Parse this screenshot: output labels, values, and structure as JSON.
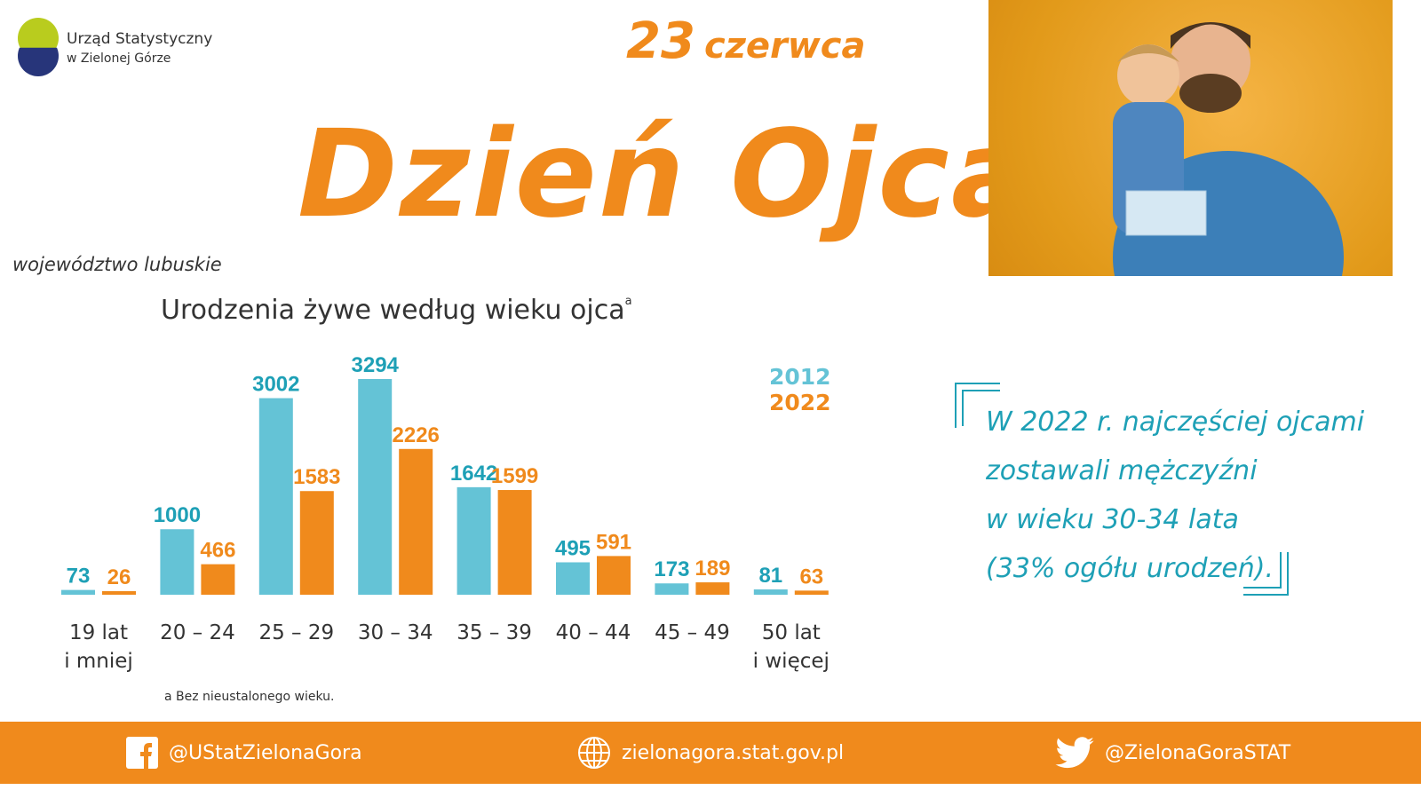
{
  "logo": {
    "line1": "Urząd Statystyczny",
    "line2": "w Zielonej Górze"
  },
  "header": {
    "day": "23",
    "month": "czerwca",
    "title": "Dzień Ojca",
    "region": "województwo lubuskie"
  },
  "colors": {
    "s2012": "#64c3d6",
    "s2012_label": "#1ea0b6",
    "s2022": "#f08a1c"
  },
  "chart_data": {
    "type": "bar",
    "title": "Urodzenia żywe według wieku ojca",
    "title_sup": "a",
    "categories": [
      "19 lat\ni mniej",
      "20 – 24",
      "25 – 29",
      "30 – 34",
      "35 – 39",
      "40 – 44",
      "45 – 49",
      "50 lat\ni więcej"
    ],
    "series": [
      {
        "name": "2012",
        "values": [
          73,
          1000,
          3002,
          3294,
          1642,
          495,
          173,
          81
        ]
      },
      {
        "name": "2022",
        "values": [
          26,
          466,
          1583,
          2226,
          1599,
          591,
          189,
          63
        ]
      }
    ],
    "legend_position": "top-right",
    "grid": false,
    "footnote": "a Bez nieustalonego wieku."
  },
  "note": {
    "lines": [
      "W 2022 r. najczęściej ojcami",
      "zostawali mężczyźni",
      "w wieku 30-34 lata",
      "(33% ogółu urodzeń)."
    ]
  },
  "footer": {
    "facebook": "@UStatZielonaGora",
    "website": "zielonagora.stat.gov.pl",
    "twitter": "@ZielonaGoraSTAT"
  }
}
